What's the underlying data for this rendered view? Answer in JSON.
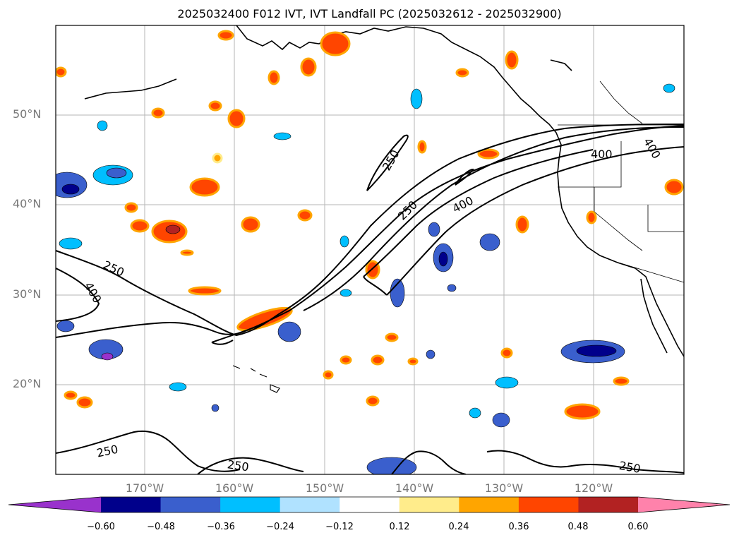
{
  "title": "2025032400 F012 IVT, IVT Landfall PC (2025032612 - 2025032900)",
  "lat_labels": [
    "50°N",
    "40°N",
    "30°N",
    "20°N"
  ],
  "lon_labels": [
    "170°W",
    "160°W",
    "150°W",
    "140°W",
    "130°W",
    "120°W"
  ],
  "contour_labels": [
    "250",
    "400"
  ],
  "colorbar": {
    "ticks": [
      "−0.60",
      "−0.48",
      "−0.36",
      "−0.24",
      "−0.12",
      "0.12",
      "0.24",
      "0.36",
      "0.48",
      "0.60"
    ],
    "colors": [
      "#9932cc",
      "#00008b",
      "#3a5fcd",
      "#00bfff",
      "#b0e2ff",
      "#ffffff",
      "#ffec8b",
      "#ffa500",
      "#ff4500",
      "#b22222",
      "#ff82ab"
    ]
  }
}
